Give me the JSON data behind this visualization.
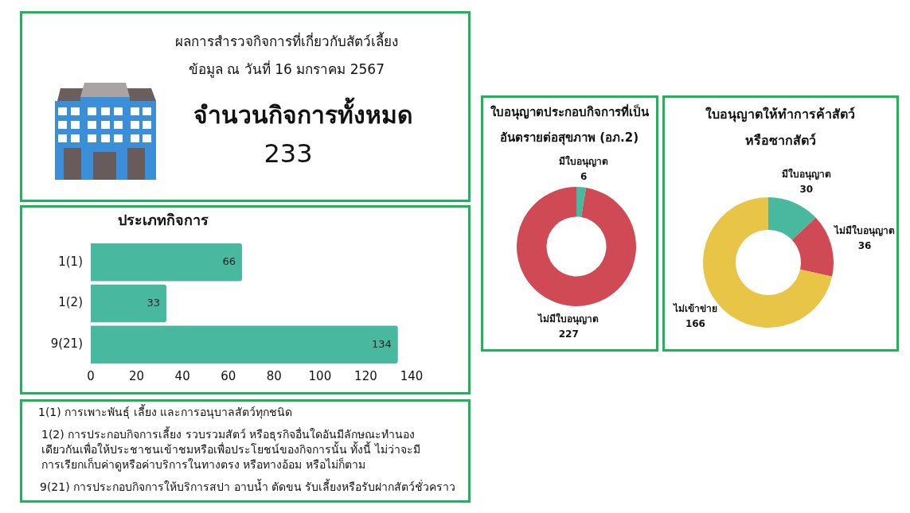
{
  "chart_data": [
    {
      "type": "other",
      "title": "ผลการสำรวจกิจการที่เกี่ยวกับสัตว์เลี้ยง",
      "subtitle": "ข้อมูล ณ วันที่ 16 มกราคม 2567",
      "annotations": [
        "จำนวนกิจการทั้งหมด",
        "233"
      ]
    },
    {
      "type": "bar",
      "orientation": "horizontal",
      "title": "ประเภทกิจการ",
      "categories": [
        "1(1)",
        "1(2)",
        "9(21)"
      ],
      "values": [
        66,
        33,
        134
      ],
      "color": "#48b99f",
      "xlim": [
        0,
        140
      ],
      "xticks": [
        0,
        20,
        40,
        60,
        80,
        100,
        120,
        140
      ],
      "data_labels": true
    },
    {
      "type": "other",
      "annotations": [
        "1(1) การเพาะพันธุ์ เลี้ยง และการอนุบาลสัตว์ทุกชนิด",
        "1(2) การประกอบกิจการเลี้ยง รวบรวมสัตว์ หรือธุรกิจอื่นใดอันมีลักษณะทำนองเดียวกันเพื่อให้ประชาชนเข้าชมหรือเพื่อประโยชน์ของกิจการนั้น ทั้งนี้ ไม่ว่าจะมีการเรียกเก็บค่าดูหรือค่าบริการในทางตรง หรือทางอ้อม หรือไม่ก็ตาม",
        "9(21) การประกอบกิจการให้บริการสปา อาบน้ำ ตัดขน รับเลี้ยงหรือรับฝากสัตว์ชั่วคราว"
      ]
    },
    {
      "type": "donut",
      "title": "ใบอนุญาตประกอบกิจการที่เป็นอันตรายต่อสุขภาพ (อภ.2)",
      "categories": [
        "มีใบอนุญาต",
        "ไม่มีใบอนุญาต"
      ],
      "values": [
        6,
        227
      ],
      "colors": [
        "#48b99f",
        "#cf4a55"
      ],
      "data_labels": true
    },
    {
      "type": "donut",
      "title": "ใบอนุญาตให้ทำการค้าสัตว์หรือซากสัตว์",
      "categories": [
        "มีใบอนุญาต",
        "ไม่มีใบอนุญาต",
        "ไม่เข้าข่าย"
      ],
      "values": [
        30,
        36,
        166
      ],
      "colors": [
        "#48b99f",
        "#cf4a55",
        "#e8c547"
      ],
      "data_labels": true
    }
  ]
}
